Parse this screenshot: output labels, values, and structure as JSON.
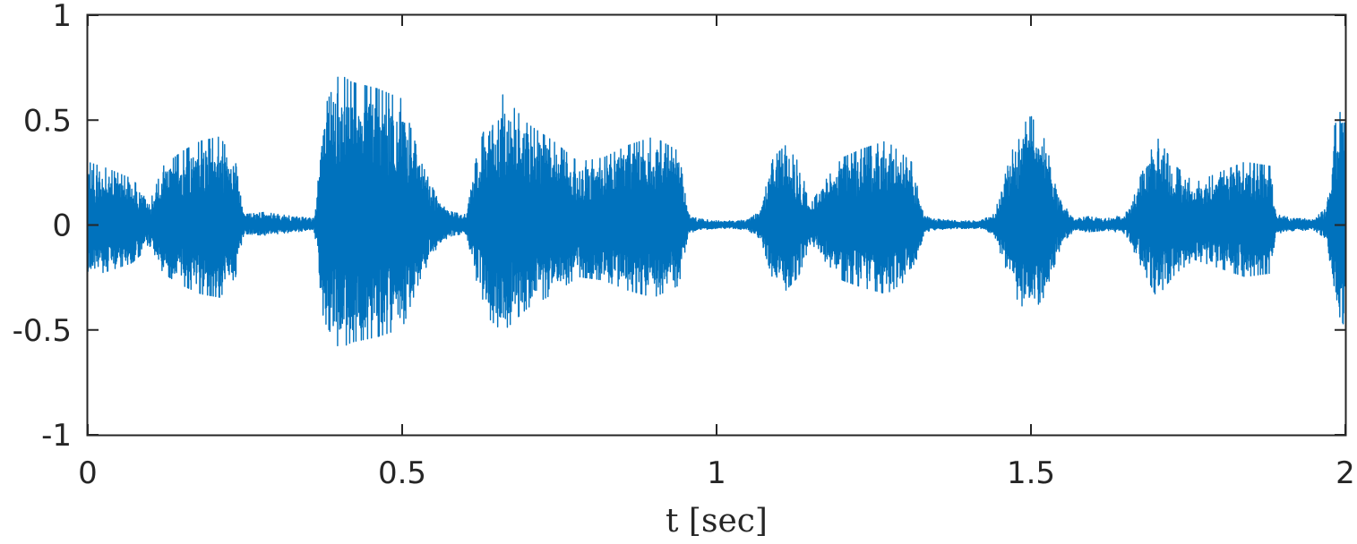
{
  "chart_data": {
    "type": "line",
    "title": "",
    "xlabel": "t [sec]",
    "ylabel": "",
    "xlim": [
      0,
      2
    ],
    "ylim": [
      -1,
      1
    ],
    "x_ticks": [
      0,
      0.5,
      1,
      1.5,
      2
    ],
    "x_tick_labels": [
      "0",
      "0.5",
      "1",
      "1.5",
      "2"
    ],
    "y_ticks": [
      -1,
      -0.5,
      0,
      0.5,
      1
    ],
    "y_tick_labels": [
      "-1",
      "-0.5",
      "0",
      "0.5",
      "1"
    ],
    "grid": false,
    "box": true,
    "line_color": "#0072BD",
    "series": [
      {
        "envelope_t": [
          0,
          0.03,
          0.07,
          0.1,
          0.12,
          0.15,
          0.18,
          0.21,
          0.235,
          0.245,
          0.25,
          0.28,
          0.33,
          0.36,
          0.375,
          0.4,
          0.42,
          0.46,
          0.5,
          0.53,
          0.56,
          0.58,
          0.6,
          0.62,
          0.64,
          0.66,
          0.7,
          0.74,
          0.78,
          0.82,
          0.86,
          0.9,
          0.94,
          0.955,
          0.97,
          1.0,
          1.03,
          1.05,
          1.07,
          1.09,
          1.11,
          1.13,
          1.15,
          1.17,
          1.2,
          1.23,
          1.27,
          1.31,
          1.33,
          1.34,
          1.38,
          1.42,
          1.44,
          1.46,
          1.48,
          1.5,
          1.52,
          1.55,
          1.57,
          1.59,
          1.62,
          1.65,
          1.67,
          1.7,
          1.73,
          1.76,
          1.8,
          1.84,
          1.88,
          1.89,
          1.92,
          1.95,
          1.97,
          1.98,
          2.0
        ],
        "envelope_peak": [
          0.3,
          0.27,
          0.22,
          0.12,
          0.28,
          0.35,
          0.4,
          0.42,
          0.3,
          0.1,
          0.05,
          0.06,
          0.04,
          0.03,
          0.55,
          0.72,
          0.68,
          0.65,
          0.6,
          0.3,
          0.1,
          0.06,
          0.05,
          0.35,
          0.55,
          0.62,
          0.48,
          0.4,
          0.3,
          0.32,
          0.38,
          0.42,
          0.35,
          0.05,
          0.03,
          0.02,
          0.02,
          0.03,
          0.08,
          0.32,
          0.38,
          0.3,
          0.1,
          0.2,
          0.32,
          0.36,
          0.4,
          0.3,
          0.05,
          0.03,
          0.02,
          0.02,
          0.05,
          0.25,
          0.45,
          0.52,
          0.42,
          0.1,
          0.03,
          0.04,
          0.03,
          0.05,
          0.2,
          0.42,
          0.28,
          0.2,
          0.25,
          0.3,
          0.28,
          0.05,
          0.03,
          0.03,
          0.08,
          0.45,
          0.6
        ]
      }
    ]
  }
}
